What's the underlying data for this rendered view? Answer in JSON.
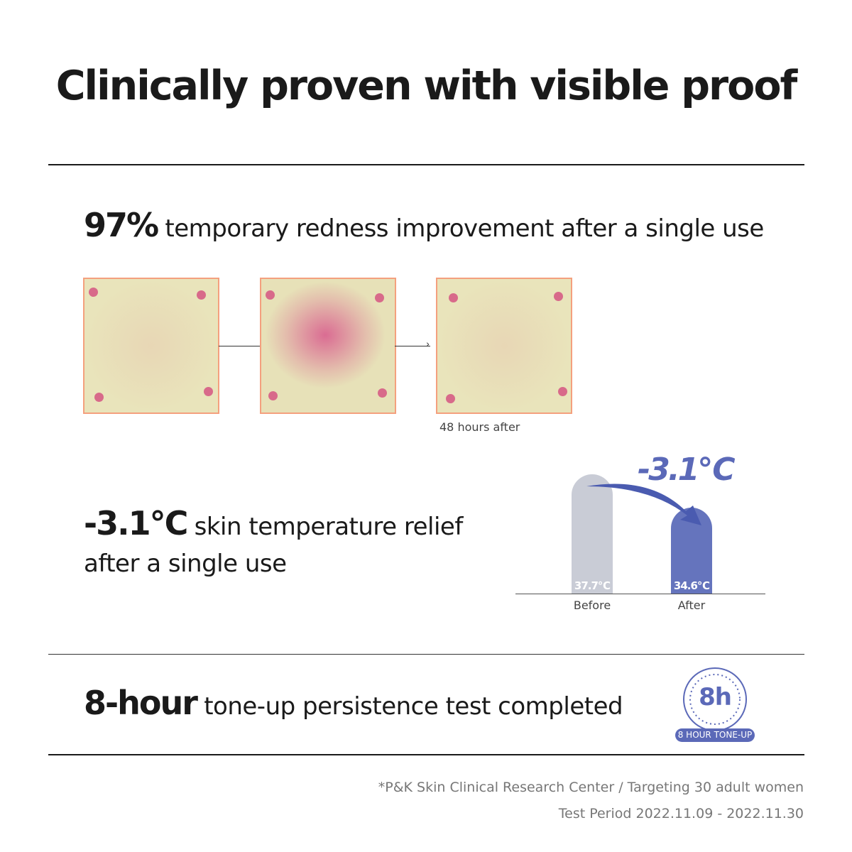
{
  "title": "Clinically proven with visible proof",
  "redness": {
    "highlight": "97%",
    "text": "temporary redness improvement after a single use",
    "caption": "48 hours after"
  },
  "temperature": {
    "highlight": "-3.1°C",
    "text_line1": "skin temperature relief",
    "text_line2": "after a single use",
    "delta_label": "-3.1℃",
    "colors": {
      "before": "#c9ccd6",
      "after": "#6574bd"
    }
  },
  "chart_data": {
    "type": "bar",
    "categories": [
      "Before",
      "After"
    ],
    "values": [
      37.7,
      34.6
    ],
    "value_labels": [
      "37.7℃",
      "34.6℃"
    ],
    "annotation": "-3.1℃"
  },
  "toneup": {
    "highlight": "8-hour",
    "text": "tone-up persistence test completed",
    "badge_main": "8h",
    "badge_label": "8 HOUR TONE-UP",
    "badge_color": "#5b69b8"
  },
  "footnote": {
    "line1": "*P&K Skin Clinical Research Center / Targeting 30 adult women",
    "line2": "Test Period 2022.11.09 - 2022.11.30"
  }
}
